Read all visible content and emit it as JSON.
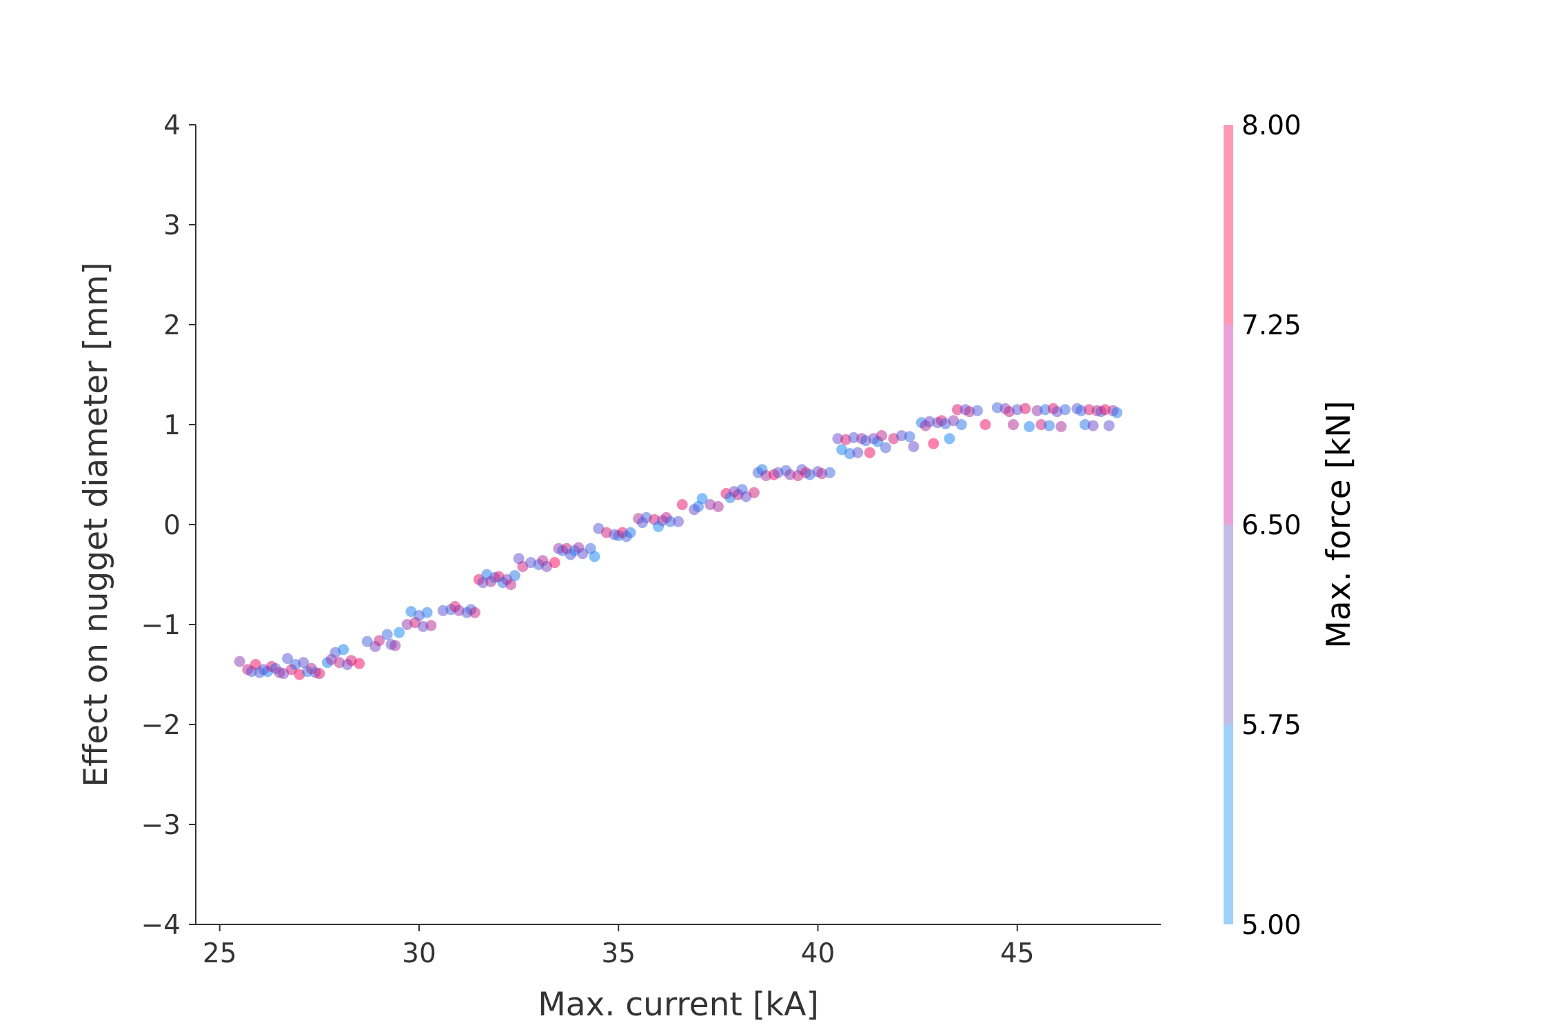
{
  "chart_data": {
    "type": "scatter",
    "xlabel": "Max. current [kA]",
    "ylabel": "Effect on nugget diameter [mm]",
    "xlim": [
      24.4,
      48.6
    ],
    "ylim": [
      -4,
      4
    ],
    "xticks": [
      25,
      30,
      35,
      40,
      45
    ],
    "yticks": [
      4,
      3,
      2,
      1,
      0,
      -1,
      -2,
      -3,
      -4
    ],
    "ytick_labels": [
      "4",
      "3",
      "2",
      "1",
      "0",
      "−1",
      "−2",
      "−3",
      "−4"
    ],
    "grid": false,
    "colorbar": {
      "label": "Max. force [kN]",
      "range": [
        5.0,
        8.0
      ],
      "ticks": [
        5.0,
        5.75,
        6.5,
        7.25,
        8.0
      ],
      "tick_labels": [
        "5.00",
        "5.75",
        "6.50",
        "7.25",
        "8.00"
      ],
      "bands": [
        {
          "from": 5.0,
          "to": 5.75,
          "color": "#9fd0f7"
        },
        {
          "from": 5.75,
          "to": 6.5,
          "color": "#c3bde8"
        },
        {
          "from": 6.5,
          "to": 7.25,
          "color": "#e9a3d8"
        },
        {
          "from": 7.25,
          "to": 8.0,
          "color": "#fe9ab6"
        }
      ]
    },
    "point_alpha": 0.5,
    "points": [
      [
        25.5,
        -1.37,
        6.8
      ],
      [
        25.7,
        -1.45,
        7.4
      ],
      [
        25.8,
        -1.47,
        6.2
      ],
      [
        25.9,
        -1.4,
        7.8
      ],
      [
        26.0,
        -1.48,
        5.9
      ],
      [
        26.1,
        -1.45,
        6.4
      ],
      [
        26.2,
        -1.47,
        5.4
      ],
      [
        26.3,
        -1.42,
        7.6
      ],
      [
        26.4,
        -1.44,
        6.0
      ],
      [
        26.5,
        -1.48,
        7.1
      ],
      [
        26.6,
        -1.49,
        6.6
      ],
      [
        26.7,
        -1.34,
        6.1
      ],
      [
        26.8,
        -1.45,
        7.5
      ],
      [
        26.9,
        -1.4,
        5.8
      ],
      [
        27.0,
        -1.5,
        7.9
      ],
      [
        27.1,
        -1.38,
        6.3
      ],
      [
        27.2,
        -1.47,
        5.6
      ],
      [
        27.3,
        -1.44,
        7.2
      ],
      [
        27.4,
        -1.48,
        6.0
      ],
      [
        27.5,
        -1.49,
        7.7
      ],
      [
        27.7,
        -1.38,
        5.3
      ],
      [
        27.8,
        -1.35,
        6.9
      ],
      [
        27.9,
        -1.28,
        6.1
      ],
      [
        28.0,
        -1.38,
        7.3
      ],
      [
        28.1,
        -1.25,
        5.2
      ],
      [
        28.2,
        -1.4,
        6.4
      ],
      [
        28.3,
        -1.36,
        7.6
      ],
      [
        28.5,
        -1.39,
        7.9
      ],
      [
        28.7,
        -1.17,
        5.9
      ],
      [
        28.9,
        -1.22,
        6.6
      ],
      [
        29.0,
        -1.16,
        7.4
      ],
      [
        29.2,
        -1.1,
        5.7
      ],
      [
        29.3,
        -1.2,
        6.2
      ],
      [
        29.4,
        -1.21,
        7.0
      ],
      [
        29.5,
        -1.08,
        5.1
      ],
      [
        29.7,
        -1.0,
        6.8
      ],
      [
        29.8,
        -0.87,
        5.3
      ],
      [
        29.9,
        -0.98,
        7.5
      ],
      [
        30.0,
        -0.91,
        6.0
      ],
      [
        30.1,
        -1.02,
        6.4
      ],
      [
        30.2,
        -0.88,
        5.4
      ],
      [
        30.3,
        -1.01,
        7.2
      ],
      [
        30.6,
        -0.86,
        6.2
      ],
      [
        30.8,
        -0.85,
        5.8
      ],
      [
        30.9,
        -0.82,
        7.6
      ],
      [
        31.0,
        -0.86,
        6.9
      ],
      [
        31.2,
        -0.88,
        6.1
      ],
      [
        31.3,
        -0.85,
        5.9
      ],
      [
        31.4,
        -0.88,
        7.4
      ],
      [
        31.5,
        -0.55,
        7.8
      ],
      [
        31.6,
        -0.58,
        6.4
      ],
      [
        31.7,
        -0.5,
        5.4
      ],
      [
        31.8,
        -0.57,
        7.1
      ],
      [
        31.9,
        -0.53,
        6.0
      ],
      [
        32.0,
        -0.52,
        7.7
      ],
      [
        32.1,
        -0.58,
        5.6
      ],
      [
        32.2,
        -0.55,
        6.7
      ],
      [
        32.3,
        -0.6,
        7.3
      ],
      [
        32.4,
        -0.51,
        5.5
      ],
      [
        32.5,
        -0.34,
        6.3
      ],
      [
        32.6,
        -0.42,
        7.5
      ],
      [
        32.8,
        -0.38,
        6.2
      ],
      [
        33.0,
        -0.4,
        5.9
      ],
      [
        33.1,
        -0.36,
        7.2
      ],
      [
        33.2,
        -0.42,
        6.6
      ],
      [
        33.4,
        -0.38,
        7.9
      ],
      [
        33.5,
        -0.24,
        6.9
      ],
      [
        33.6,
        -0.26,
        5.7
      ],
      [
        33.7,
        -0.24,
        7.4
      ],
      [
        33.8,
        -0.3,
        6.1
      ],
      [
        33.9,
        -0.26,
        5.3
      ],
      [
        34.0,
        -0.23,
        7.0
      ],
      [
        34.1,
        -0.29,
        6.4
      ],
      [
        34.3,
        -0.24,
        5.8
      ],
      [
        34.4,
        -0.32,
        5.2
      ],
      [
        34.5,
        -0.04,
        6.2
      ],
      [
        34.7,
        -0.08,
        7.5
      ],
      [
        34.9,
        -0.1,
        6.5
      ],
      [
        35.0,
        -0.11,
        5.6
      ],
      [
        35.1,
        -0.08,
        7.8
      ],
      [
        35.2,
        -0.12,
        6.0
      ],
      [
        35.3,
        -0.08,
        5.4
      ],
      [
        35.5,
        0.06,
        7.2
      ],
      [
        35.6,
        0.02,
        6.1
      ],
      [
        35.7,
        0.07,
        5.9
      ],
      [
        35.9,
        0.05,
        7.6
      ],
      [
        36.0,
        -0.02,
        5.1
      ],
      [
        36.1,
        0.04,
        6.7
      ],
      [
        36.2,
        0.07,
        7.4
      ],
      [
        36.3,
        0.03,
        5.7
      ],
      [
        36.5,
        0.03,
        6.3
      ],
      [
        36.6,
        0.2,
        7.7
      ],
      [
        36.9,
        0.15,
        6.5
      ],
      [
        37.0,
        0.18,
        5.5
      ],
      [
        37.1,
        0.26,
        5.2
      ],
      [
        37.3,
        0.2,
        6.9
      ],
      [
        37.5,
        0.18,
        7.1
      ],
      [
        37.7,
        0.31,
        7.8
      ],
      [
        37.8,
        0.27,
        5.3
      ],
      [
        37.9,
        0.33,
        6.6
      ],
      [
        38.0,
        0.3,
        7.3
      ],
      [
        38.1,
        0.35,
        5.8
      ],
      [
        38.2,
        0.28,
        6.4
      ],
      [
        38.4,
        0.32,
        7.5
      ],
      [
        38.5,
        0.52,
        6.0
      ],
      [
        38.6,
        0.55,
        5.4
      ],
      [
        38.7,
        0.49,
        7.0
      ],
      [
        38.9,
        0.5,
        7.9
      ],
      [
        39.0,
        0.52,
        6.3
      ],
      [
        39.2,
        0.54,
        5.9
      ],
      [
        39.3,
        0.5,
        6.8
      ],
      [
        39.5,
        0.49,
        7.4
      ],
      [
        39.6,
        0.55,
        6.1
      ],
      [
        39.7,
        0.52,
        7.7
      ],
      [
        39.8,
        0.5,
        5.6
      ],
      [
        40.0,
        0.53,
        6.5
      ],
      [
        40.1,
        0.51,
        7.2
      ],
      [
        40.3,
        0.52,
        5.8
      ],
      [
        40.5,
        0.86,
        6.4
      ],
      [
        40.6,
        0.75,
        5.2
      ],
      [
        40.7,
        0.85,
        7.6
      ],
      [
        40.8,
        0.71,
        5.5
      ],
      [
        40.9,
        0.87,
        6.1
      ],
      [
        41.0,
        0.72,
        6.3
      ],
      [
        41.1,
        0.86,
        7.0
      ],
      [
        41.2,
        0.84,
        5.9
      ],
      [
        41.3,
        0.72,
        7.8
      ],
      [
        41.4,
        0.86,
        6.6
      ],
      [
        41.5,
        0.83,
        5.4
      ],
      [
        41.6,
        0.89,
        7.3
      ],
      [
        41.7,
        0.77,
        6.0
      ],
      [
        41.9,
        0.86,
        7.5
      ],
      [
        42.1,
        0.89,
        6.2
      ],
      [
        42.3,
        0.88,
        5.7
      ],
      [
        42.4,
        0.78,
        6.4
      ],
      [
        42.6,
        1.02,
        5.3
      ],
      [
        42.7,
        0.99,
        7.1
      ],
      [
        42.8,
        1.03,
        6.5
      ],
      [
        42.9,
        0.81,
        7.9
      ],
      [
        43.0,
        1.02,
        6.2
      ],
      [
        43.1,
        1.04,
        7.6
      ],
      [
        43.2,
        1.01,
        5.8
      ],
      [
        43.3,
        0.86,
        5.2
      ],
      [
        43.4,
        1.04,
        6.8
      ],
      [
        43.5,
        1.15,
        7.7
      ],
      [
        43.6,
        1.0,
        5.6
      ],
      [
        43.7,
        1.15,
        6.3
      ],
      [
        43.8,
        1.13,
        7.3
      ],
      [
        44.0,
        1.14,
        6.0
      ],
      [
        44.2,
        1.0,
        7.8
      ],
      [
        44.5,
        1.17,
        5.9
      ],
      [
        44.7,
        1.16,
        6.6
      ],
      [
        44.8,
        1.13,
        7.4
      ],
      [
        44.9,
        1.0,
        7.2
      ],
      [
        45.0,
        1.15,
        6.1
      ],
      [
        45.2,
        1.16,
        7.7
      ],
      [
        45.3,
        0.98,
        5.3
      ],
      [
        45.5,
        1.14,
        6.9
      ],
      [
        45.6,
        1.0,
        7.5
      ],
      [
        45.7,
        1.15,
        5.6
      ],
      [
        45.8,
        0.99,
        5.4
      ],
      [
        45.9,
        1.16,
        7.8
      ],
      [
        46.0,
        1.13,
        6.4
      ],
      [
        46.1,
        0.98,
        7.1
      ],
      [
        46.2,
        1.15,
        5.8
      ],
      [
        46.5,
        1.16,
        6.2
      ],
      [
        46.6,
        1.14,
        5.7
      ],
      [
        46.7,
        1.0,
        5.5
      ],
      [
        46.8,
        1.15,
        7.6
      ],
      [
        46.9,
        0.99,
        6.5
      ],
      [
        47.0,
        1.14,
        7.3
      ],
      [
        47.1,
        1.13,
        6.0
      ],
      [
        47.2,
        1.15,
        7.9
      ],
      [
        47.3,
        0.99,
        6.3
      ],
      [
        47.4,
        1.14,
        7.0
      ],
      [
        47.5,
        1.12,
        5.4
      ]
    ]
  }
}
